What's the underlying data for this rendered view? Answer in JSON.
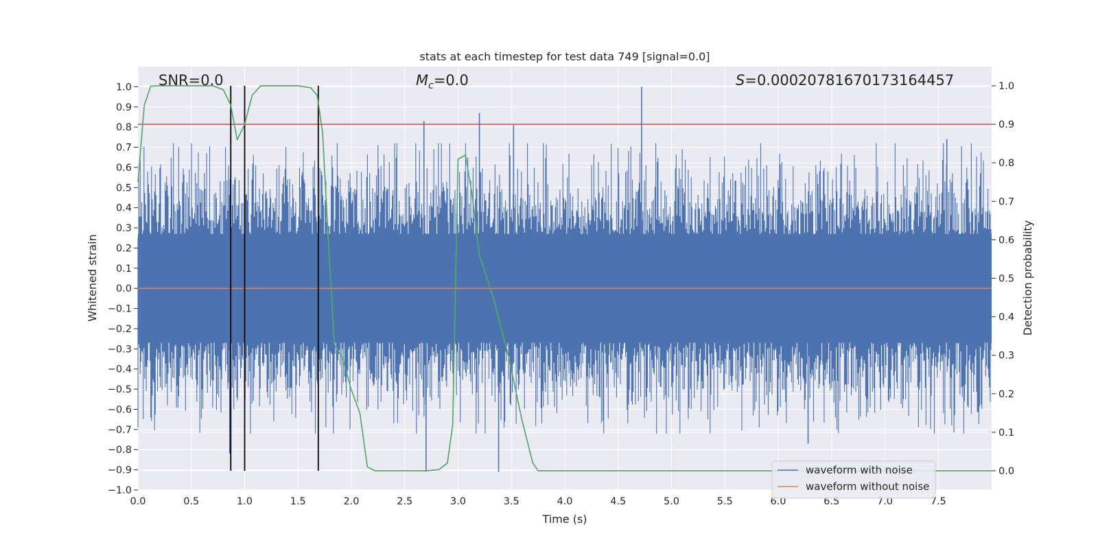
{
  "chart_data": {
    "type": "line",
    "title": "stats at each timestep for test data 749 [signal=0.0]",
    "xlabel": "Time (s)",
    "ylabel": "Whitened strain",
    "ylabel_right": "Detection probability",
    "xlim": [
      0.0,
      8.0
    ],
    "ylim": [
      -1.0,
      1.1
    ],
    "ylim_right": [
      -0.05,
      1.05
    ],
    "x_ticks": [
      "0.0",
      "0.5",
      "1.0",
      "1.5",
      "2.0",
      "2.5",
      "3.0",
      "3.5",
      "4.0",
      "4.5",
      "5.0",
      "5.5",
      "6.0",
      "6.5",
      "7.0",
      "7.5"
    ],
    "y_ticks": [
      "1.0",
      "0.9",
      "0.8",
      "0.7",
      "0.6",
      "0.5",
      "0.4",
      "0.3",
      "0.2",
      "0.1",
      "0.0",
      "−0.1",
      "−0.2",
      "−0.3",
      "−0.4",
      "−0.5",
      "−0.6",
      "−0.7",
      "−0.8",
      "−0.9",
      "−1.0"
    ],
    "y_ticks_right": [
      "1.0",
      "0.9",
      "0.8",
      "0.7",
      "0.6",
      "0.5",
      "0.4",
      "0.3",
      "0.2",
      "0.1",
      "0.0"
    ],
    "annotations": {
      "snr": "SNR=0.0",
      "mc_symbol": "M",
      "mc_sub": "c",
      "mc_value": "=0.0",
      "s_symbol": "S",
      "s_value": "=0.0002078167017316445​7"
    },
    "grid": true,
    "legend_position": "lower-right",
    "series": [
      {
        "name": "waveform with noise",
        "axis": "left",
        "color": "#4c72b0",
        "style": "dense noise",
        "band": [
          -0.45,
          0.45
        ],
        "peaks": [
          {
            "x": 2.68,
            "y": 0.83
          },
          {
            "x": 3.2,
            "y": 0.87
          },
          {
            "x": 3.52,
            "y": 0.81
          },
          {
            "x": 4.72,
            "y": 1.0
          },
          {
            "x": 7.58,
            "y": 0.74
          },
          {
            "x": 0.86,
            "y": -0.82
          },
          {
            "x": 2.7,
            "y": -0.91
          },
          {
            "x": 3.38,
            "y": -0.91
          },
          {
            "x": 6.28,
            "y": -0.77
          }
        ]
      },
      {
        "name": "waveform without noise",
        "axis": "left",
        "color": "#dd8452",
        "x": [
          0.0,
          8.0
        ],
        "y": [
          0.0,
          0.0
        ]
      },
      {
        "name": "Detection probability",
        "axis": "right",
        "color": "#55a868",
        "x": [
          0.0,
          0.06,
          0.12,
          0.2,
          0.35,
          0.55,
          0.7,
          0.8,
          0.87,
          0.93,
          1.0,
          1.07,
          1.15,
          1.3,
          1.5,
          1.62,
          1.68,
          1.73,
          1.78,
          1.84,
          1.92,
          2.0,
          2.08,
          2.15,
          2.22,
          2.3,
          2.5,
          2.7,
          2.82,
          2.9,
          2.95,
          3.0,
          3.07,
          3.13,
          3.2,
          3.33,
          3.47,
          3.6,
          3.7,
          3.75,
          3.8,
          3.9,
          4.2,
          8.0
        ],
        "y": [
          0.75,
          0.95,
          0.999,
          1.0,
          1.0,
          1.0,
          1.0,
          0.99,
          0.95,
          0.86,
          0.9,
          0.975,
          1.0,
          1.0,
          1.0,
          0.995,
          0.975,
          0.88,
          0.62,
          0.33,
          0.29,
          0.21,
          0.15,
          0.01,
          0.0,
          0.0,
          0.0,
          0.0,
          0.003,
          0.02,
          0.12,
          0.81,
          0.82,
          0.72,
          0.56,
          0.45,
          0.3,
          0.13,
          0.02,
          0.0,
          0.0,
          0.0,
          0.0,
          0.0
        ]
      },
      {
        "name": "threshold",
        "axis": "right",
        "color": "#c44e52",
        "x": [
          0.0,
          8.0
        ],
        "y": [
          0.9,
          0.9
        ]
      }
    ],
    "vertical_markers": [
      {
        "x": 0.87,
        "color": "#000000"
      },
      {
        "x": 1.0,
        "color": "#000000"
      },
      {
        "x": 1.69,
        "color": "#000000"
      }
    ]
  }
}
